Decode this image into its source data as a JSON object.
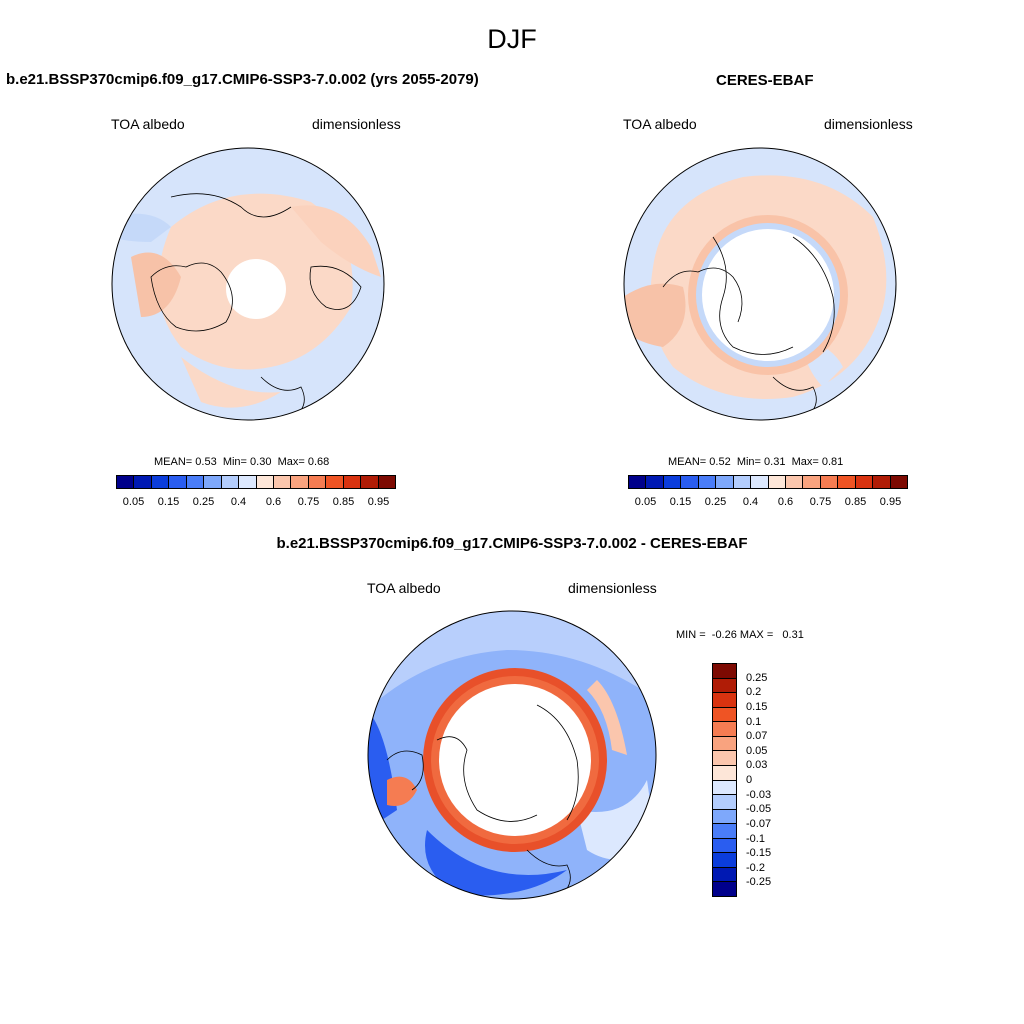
{
  "season": "DJF",
  "panels": {
    "model": {
      "title": "b.e21.BSSP370cmip6.f09_g17.CMIP6-SSP3-7.0.002 (yrs 2055-2079)",
      "variable": "TOA albedo",
      "units": "dimensionless",
      "stats": {
        "mean_label": "MEAN=",
        "mean": "0.53",
        "min_label": "Min=",
        "min": "0.30",
        "max_label": "Max=",
        "max": "0.68"
      }
    },
    "obs": {
      "title": "CERES-EBAF",
      "variable": "TOA albedo",
      "units": "dimensionless",
      "stats": {
        "mean_label": "MEAN=",
        "mean": "0.52",
        "min_label": "Min=",
        "min": "0.31",
        "max_label": "Max=",
        "max": "0.81"
      }
    },
    "diff": {
      "title": "b.e21.BSSP370cmip6.f09_g17.CMIP6-SSP3-7.0.002 - CERES-EBAF",
      "variable": "TOA albedo",
      "units": "dimensionless",
      "stats": {
        "min_label": "MIN =",
        "min": "-0.26",
        "max_label": "MAX =",
        "max": "0.31"
      }
    }
  },
  "colorbar_abs": {
    "colors": [
      "#00008b",
      "#0019b3",
      "#0b3ddc",
      "#2a5df0",
      "#4a7df8",
      "#7ea8fb",
      "#b3cdfd",
      "#dce8fe",
      "#fde6d8",
      "#fbc6ad",
      "#f9a37f",
      "#f57c52",
      "#ef5424",
      "#d93310",
      "#b01c06",
      "#7d0a02"
    ],
    "labels": [
      "0.05",
      "0.15",
      "0.25",
      "0.4",
      "0.6",
      "0.75",
      "0.85",
      "0.95"
    ]
  },
  "colorbar_diff": {
    "colors": [
      "#7d0a02",
      "#b01c06",
      "#d93310",
      "#ef5424",
      "#f57c52",
      "#f9a37f",
      "#fbc6ad",
      "#fde6d8",
      "#dce8fe",
      "#b3cdfd",
      "#7ea8fb",
      "#4a7df8",
      "#2a5df0",
      "#0b3ddc",
      "#0019b3",
      "#00008b"
    ],
    "labels": [
      "0.25",
      "0.2",
      "0.15",
      "0.1",
      "0.07",
      "0.05",
      "0.03",
      "0",
      "-0.03",
      "-0.05",
      "-0.07",
      "-0.1",
      "-0.15",
      "-0.2",
      "-0.25"
    ]
  }
}
